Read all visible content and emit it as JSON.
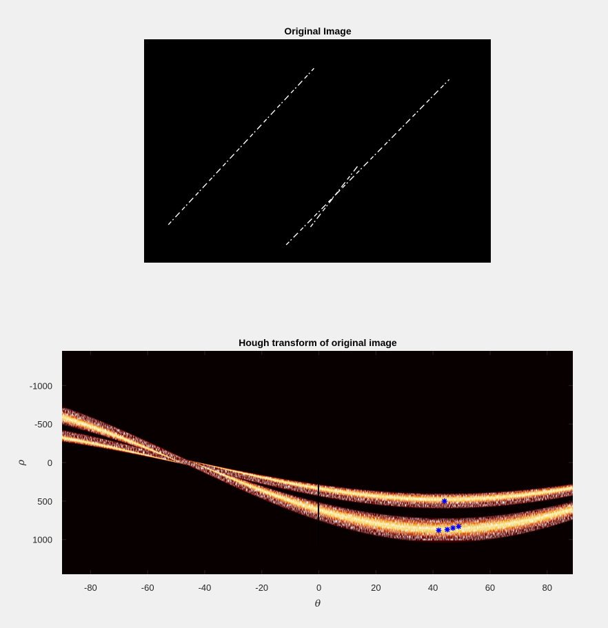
{
  "chart_data": [
    {
      "type": "image",
      "title": "Original Image",
      "background": "#000000",
      "foreground": "#ffffff",
      "xlabel": "",
      "ylabel": "",
      "axes_ticks": false,
      "description_lines": [
        {
          "x1": 0.07,
          "y1": 0.83,
          "x2": 0.49,
          "y2": 0.13
        },
        {
          "x1": 0.41,
          "y1": 0.92,
          "x2": 0.88,
          "y2": 0.18
        },
        {
          "x1": 0.48,
          "y1": 0.84,
          "x2": 0.62,
          "y2": 0.56
        }
      ]
    },
    {
      "type": "heatmap",
      "title": "Hough transform of original image",
      "xlabel": "θ",
      "ylabel": "ρ",
      "xlim": [
        -90,
        89
      ],
      "ylim": [
        1450,
        -1450
      ],
      "xticks": [
        -80,
        -60,
        -40,
        -20,
        0,
        20,
        40,
        60,
        80
      ],
      "yticks": [
        -1000,
        -500,
        0,
        500,
        1000
      ],
      "colormap": "hot",
      "background": "#080000",
      "grid": false,
      "bands": [
        {
          "rho_at_theta0": 200,
          "angle_deg": 44,
          "rho_peak": 500,
          "width": 140
        },
        {
          "rho_at_theta0": 900,
          "angle_deg": 44,
          "rho_peak": 880,
          "width": 260
        }
      ],
      "peaks": [
        {
          "theta": 44,
          "rho": 500
        },
        {
          "theta": 42,
          "rho": 880
        },
        {
          "theta": 45,
          "rho": 870
        },
        {
          "theta": 47,
          "rho": 850
        },
        {
          "theta": 49,
          "rho": 830
        }
      ],
      "peak_marker_color": "#0000ff"
    }
  ]
}
